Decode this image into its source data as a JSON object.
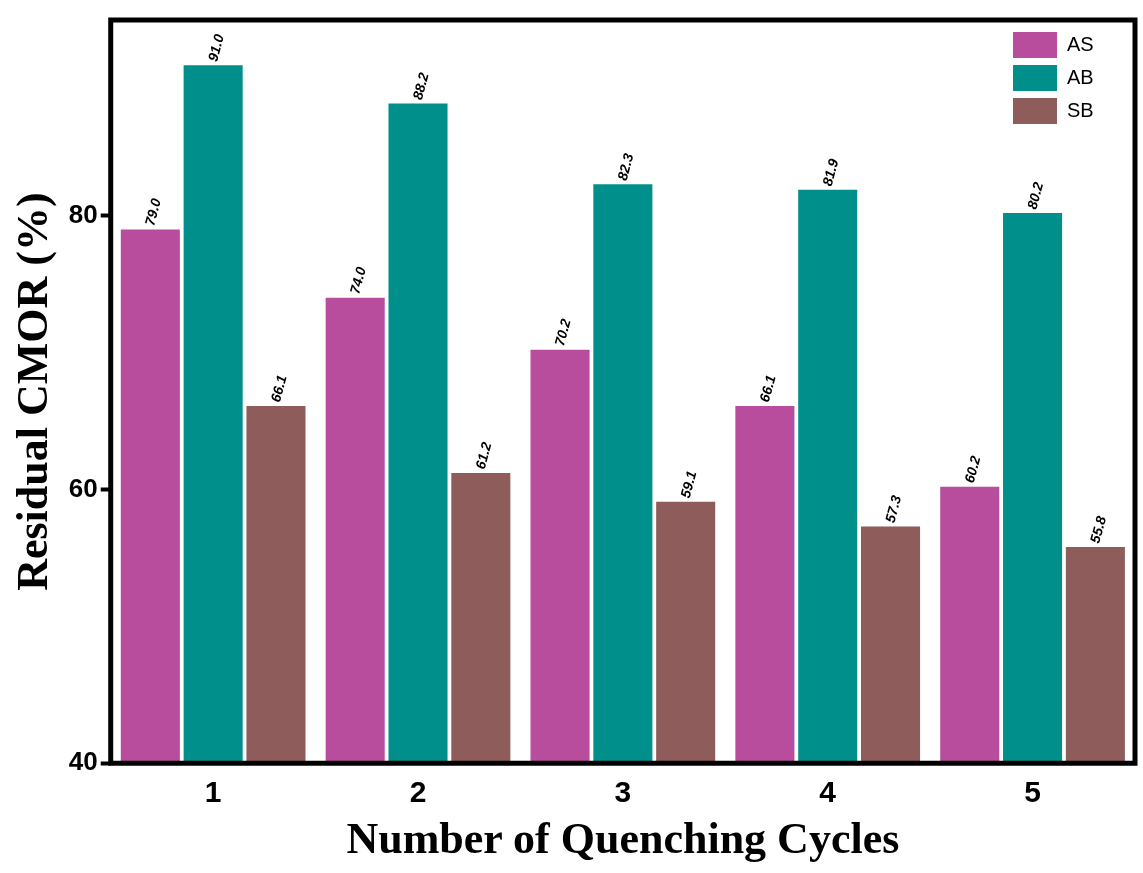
{
  "chart_data": {
    "type": "bar",
    "xlabel": "Number of Quenching Cycles",
    "ylabel": "Residual CMOR (%)",
    "categories": [
      "1",
      "2",
      "3",
      "4",
      "5"
    ],
    "series": [
      {
        "name": "AS",
        "color": "#b84d9e",
        "values": [
          79.0,
          74.0,
          70.2,
          66.1,
          60.2
        ],
        "value_labels": [
          "79.0",
          "74.0",
          "70.2",
          "66.1",
          "60.2"
        ]
      },
      {
        "name": "AB",
        "color": "#008f8a",
        "values": [
          91.0,
          88.2,
          82.3,
          81.9,
          80.2
        ],
        "value_labels": [
          "91.0",
          "88.2",
          "82.3",
          "81.9",
          "80.2"
        ]
      },
      {
        "name": "SB",
        "color": "#8e5c5a",
        "values": [
          66.1,
          61.2,
          59.1,
          57.3,
          55.8
        ],
        "value_labels": [
          "66.1",
          "61.2",
          "59.1",
          "57.3",
          "55.8"
        ]
      }
    ],
    "ylim": [
      40,
      94.3
    ],
    "yticks": [
      40,
      60,
      80
    ],
    "legend": "top right",
    "grid": false
  }
}
